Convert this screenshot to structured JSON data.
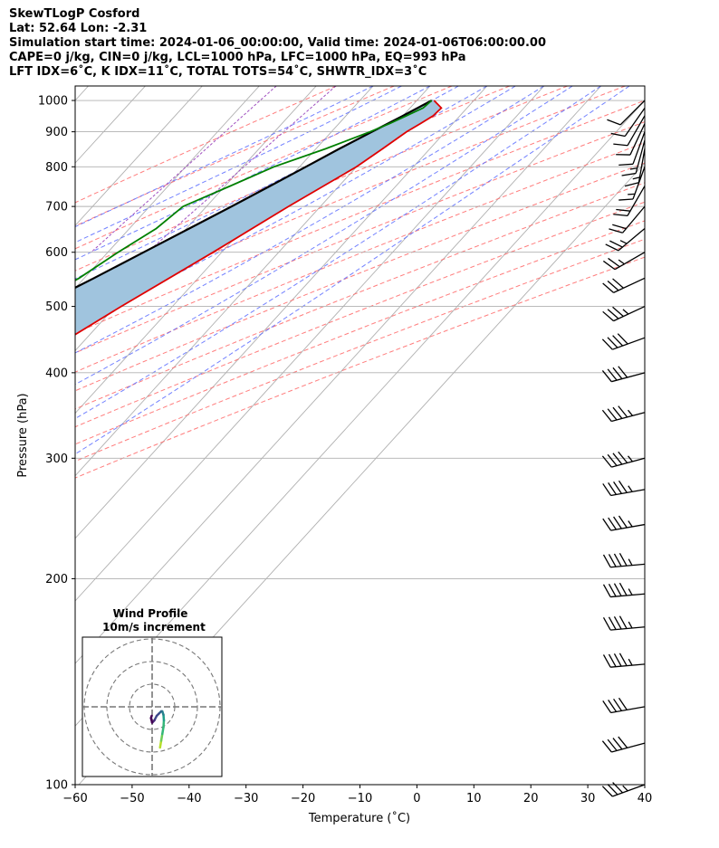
{
  "header": {
    "line1": "SkewTLogP Cosford",
    "line2": "Lat: 52.64   Lon: -2.31",
    "line3": "Simulation start time: 2024-01-06_00:00:00, Valid time: 2024-01-06T06:00:00.00",
    "line4": "CAPE=0 j/kg, CIN=0 j/kg, LCL=1000 hPa, LFC=1000 hPa, EQ=993 hPa",
    "line5": "LFT IDX=6˚C, K IDX=11˚C, TOTAL TOTS=54˚C, SHWTR_IDX=3˚C"
  },
  "chart_data": {
    "type": "line",
    "xlabel": "Temperature (˚C)",
    "ylabel": "Pressure (hPa)",
    "xlim": [
      -60,
      40
    ],
    "ylim": [
      1050,
      100
    ],
    "y_scale": "log",
    "x_ticks": [
      -60,
      -50,
      -40,
      -30,
      -20,
      -10,
      0,
      10,
      20,
      30,
      40
    ],
    "x_tick_labels": [
      "−60",
      "−50",
      "−40",
      "−30",
      "−20",
      "−10",
      "0",
      "10",
      "20",
      "30",
      "40"
    ],
    "y_ticks": [
      1000,
      900,
      800,
      700,
      600,
      500,
      400,
      300,
      200,
      100
    ],
    "y_tick_labels": [
      "1000",
      "900",
      "800",
      "700",
      "600",
      "500",
      "400",
      "300",
      "200",
      "100"
    ],
    "grid": true,
    "colors": {
      "temperature": "#e00000",
      "dewpoint": "#008000",
      "parcel": "#000000",
      "fill": "#a0c4de",
      "dry_adiabat": "#ff6666",
      "moist_adiabat": "#5b6cff",
      "isotherm": "#b0b0b0",
      "mixing_ratio": "#a050c0"
    },
    "series": [
      {
        "key": "temperature",
        "pressure": [
          1000,
          975,
          950,
          925,
          900,
          850,
          800,
          700,
          600,
          500,
          450,
          400,
          380,
          350,
          300,
          250,
          200,
          150,
          120,
          100
        ],
        "values": [
          3.0,
          5.5,
          5.3,
          4.3,
          3.2,
          1.7,
          0.0,
          -5.6,
          -11.5,
          -19.0,
          -23.0,
          -28.0,
          -30.6,
          -32.5,
          -36.6,
          -43.0,
          -49.2,
          -55.2,
          -58.4,
          -61.0
        ]
      },
      {
        "key": "dewpoint",
        "pressure": [
          1000,
          975,
          950,
          925,
          900,
          850,
          800,
          750,
          700,
          650,
          600,
          550,
          500,
          450,
          420,
          400,
          360,
          330,
          300,
          270,
          250,
          220,
          190,
          150,
          120,
          100
        ],
        "values": [
          2.6,
          2.3,
          0.6,
          -1.1,
          -3.2,
          -8.3,
          -14.5,
          -19.1,
          -24.1,
          -25.3,
          -28.2,
          -30.9,
          -35.0,
          -42.0,
          -43.5,
          -43.6,
          -42.7,
          -44.9,
          -49.2,
          -50.2,
          -51.2,
          -55.7,
          -62.8,
          -67.1,
          -70.6,
          -74.0
        ]
      },
      {
        "key": "parcel",
        "pressure": [
          1000,
          950,
          900,
          850,
          800,
          750,
          700,
          650,
          600,
          550,
          500,
          450,
          400,
          350,
          300,
          250,
          200,
          150,
          120,
          100
        ],
        "values": [
          2.6,
          0.0,
          -2.9,
          -5.9,
          -8.9,
          -12.1,
          -15.6,
          -19.5,
          -23.7,
          -28.3,
          -33.6,
          -39.5,
          -46.2,
          -53.6,
          -61.8,
          -71.0,
          -81.5,
          -95.4,
          -106.0,
          -114.0
        ]
      }
    ],
    "wind_barbs": {
      "pressure": [
        1000,
        975,
        950,
        925,
        900,
        875,
        850,
        800,
        750,
        700,
        650,
        600,
        550,
        500,
        450,
        400,
        350,
        300,
        270,
        240,
        210,
        190,
        170,
        150,
        130,
        115,
        100
      ],
      "direction_deg": [
        225,
        215,
        210,
        205,
        200,
        195,
        190,
        200,
        210,
        220,
        230,
        240,
        245,
        245,
        250,
        255,
        255,
        255,
        260,
        260,
        265,
        265,
        265,
        265,
        260,
        255,
        250
      ],
      "speed_kt": [
        10,
        10,
        10,
        10,
        10,
        15,
        15,
        15,
        20,
        20,
        25,
        25,
        30,
        35,
        40,
        40,
        45,
        45,
        45,
        45,
        45,
        45,
        45,
        45,
        40,
        40,
        35
      ]
    },
    "hodograph": {
      "title_line1": "Wind Profile",
      "title_line2": "10m/s increment",
      "rings_ms": [
        10,
        20,
        30
      ],
      "u_ms": [
        3.5,
        4.0,
        4.5,
        5.0,
        5.2,
        5.0,
        4.5,
        4.0,
        3.0,
        2.0,
        1.0,
        0.0,
        -0.5,
        -0.2
      ],
      "v_ms": [
        -18.0,
        -15.0,
        -12.0,
        -9.0,
        -6.0,
        -3.5,
        -2.0,
        -2.0,
        -3.0,
        -4.0,
        -6.0,
        -7.0,
        -5.0,
        -4.0
      ]
    }
  }
}
